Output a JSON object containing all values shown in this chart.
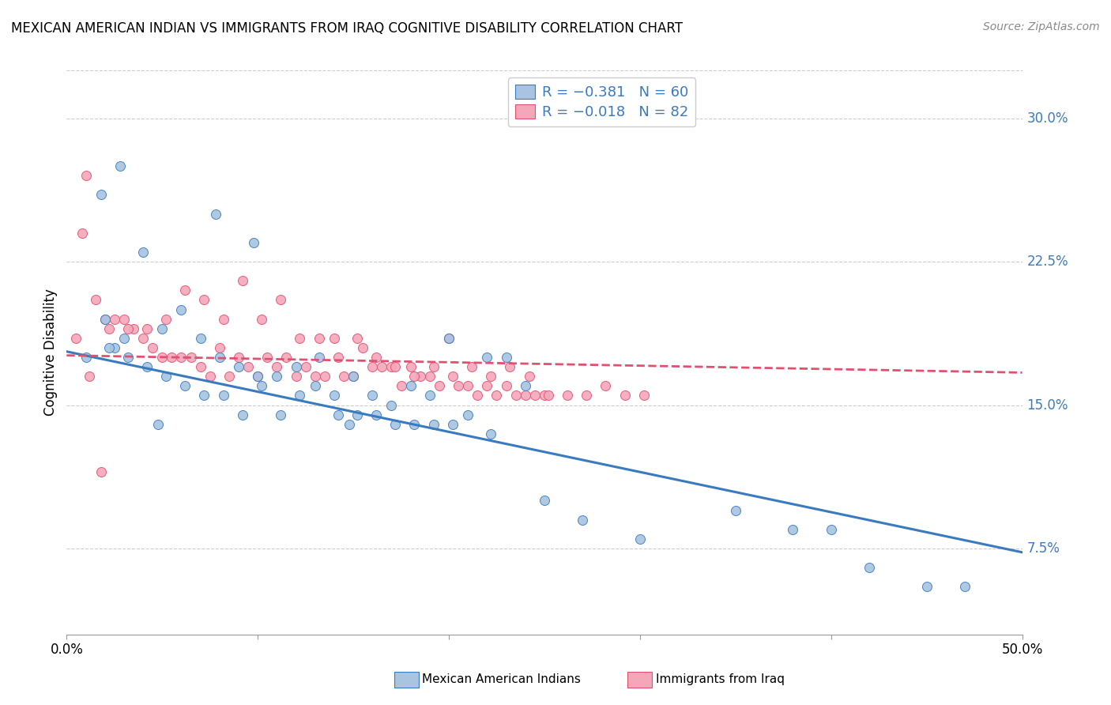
{
  "title": "MEXICAN AMERICAN INDIAN VS IMMIGRANTS FROM IRAQ COGNITIVE DISABILITY CORRELATION CHART",
  "source": "Source: ZipAtlas.com",
  "ylabel": "Cognitive Disability",
  "yticks": [
    "7.5%",
    "15.0%",
    "22.5%",
    "30.0%"
  ],
  "ytick_vals": [
    0.075,
    0.15,
    0.225,
    0.3
  ],
  "xlim": [
    0.0,
    0.5
  ],
  "ylim": [
    0.03,
    0.325
  ],
  "color_blue": "#a8c4e0",
  "color_pink": "#f4a7b9",
  "line_blue": "#3a7abf",
  "line_pink": "#e05070",
  "legend_text_color": "#3a7abf",
  "blue_line_y0": 0.178,
  "blue_line_y1": 0.073,
  "pink_line_y0": 0.176,
  "pink_line_y1": 0.167,
  "blue_scatter_x": [
    0.02,
    0.04,
    0.01,
    0.025,
    0.03,
    0.05,
    0.06,
    0.07,
    0.08,
    0.09,
    0.1,
    0.11,
    0.12,
    0.13,
    0.14,
    0.15,
    0.16,
    0.17,
    0.18,
    0.19,
    0.2,
    0.21,
    0.22,
    0.23,
    0.24,
    0.022,
    0.032,
    0.042,
    0.052,
    0.062,
    0.072,
    0.082,
    0.092,
    0.102,
    0.112,
    0.122,
    0.132,
    0.142,
    0.152,
    0.162,
    0.172,
    0.182,
    0.192,
    0.202,
    0.222,
    0.25,
    0.27,
    0.3,
    0.35,
    0.38,
    0.4,
    0.42,
    0.45,
    0.47,
    0.018,
    0.028,
    0.048,
    0.078,
    0.098,
    0.148
  ],
  "blue_scatter_y": [
    0.195,
    0.23,
    0.175,
    0.18,
    0.185,
    0.19,
    0.2,
    0.185,
    0.175,
    0.17,
    0.165,
    0.165,
    0.17,
    0.16,
    0.155,
    0.165,
    0.155,
    0.15,
    0.16,
    0.155,
    0.185,
    0.145,
    0.175,
    0.175,
    0.16,
    0.18,
    0.175,
    0.17,
    0.165,
    0.16,
    0.155,
    0.155,
    0.145,
    0.16,
    0.145,
    0.155,
    0.175,
    0.145,
    0.145,
    0.145,
    0.14,
    0.14,
    0.14,
    0.14,
    0.135,
    0.1,
    0.09,
    0.08,
    0.095,
    0.085,
    0.085,
    0.065,
    0.055,
    0.055,
    0.26,
    0.275,
    0.14,
    0.25,
    0.235,
    0.14
  ],
  "pink_scatter_x": [
    0.005,
    0.01,
    0.015,
    0.02,
    0.025,
    0.03,
    0.035,
    0.04,
    0.045,
    0.05,
    0.055,
    0.06,
    0.065,
    0.07,
    0.075,
    0.08,
    0.085,
    0.09,
    0.095,
    0.1,
    0.105,
    0.11,
    0.115,
    0.12,
    0.125,
    0.13,
    0.135,
    0.14,
    0.145,
    0.15,
    0.155,
    0.16,
    0.165,
    0.17,
    0.175,
    0.18,
    0.185,
    0.19,
    0.195,
    0.2,
    0.205,
    0.21,
    0.215,
    0.22,
    0.225,
    0.23,
    0.235,
    0.24,
    0.245,
    0.25,
    0.012,
    0.022,
    0.032,
    0.042,
    0.052,
    0.062,
    0.072,
    0.082,
    0.092,
    0.102,
    0.112,
    0.122,
    0.132,
    0.142,
    0.152,
    0.162,
    0.172,
    0.182,
    0.192,
    0.202,
    0.212,
    0.222,
    0.232,
    0.242,
    0.252,
    0.262,
    0.272,
    0.282,
    0.292,
    0.302,
    0.008,
    0.018
  ],
  "pink_scatter_y": [
    0.185,
    0.27,
    0.205,
    0.195,
    0.195,
    0.195,
    0.19,
    0.185,
    0.18,
    0.175,
    0.175,
    0.175,
    0.175,
    0.17,
    0.165,
    0.18,
    0.165,
    0.175,
    0.17,
    0.165,
    0.175,
    0.17,
    0.175,
    0.165,
    0.17,
    0.165,
    0.165,
    0.185,
    0.165,
    0.165,
    0.18,
    0.17,
    0.17,
    0.17,
    0.16,
    0.17,
    0.165,
    0.165,
    0.16,
    0.185,
    0.16,
    0.16,
    0.155,
    0.16,
    0.155,
    0.16,
    0.155,
    0.155,
    0.155,
    0.155,
    0.165,
    0.19,
    0.19,
    0.19,
    0.195,
    0.21,
    0.205,
    0.195,
    0.215,
    0.195,
    0.205,
    0.185,
    0.185,
    0.175,
    0.185,
    0.175,
    0.17,
    0.165,
    0.17,
    0.165,
    0.17,
    0.165,
    0.17,
    0.165,
    0.155,
    0.155,
    0.155,
    0.16,
    0.155,
    0.155,
    0.24,
    0.115
  ]
}
